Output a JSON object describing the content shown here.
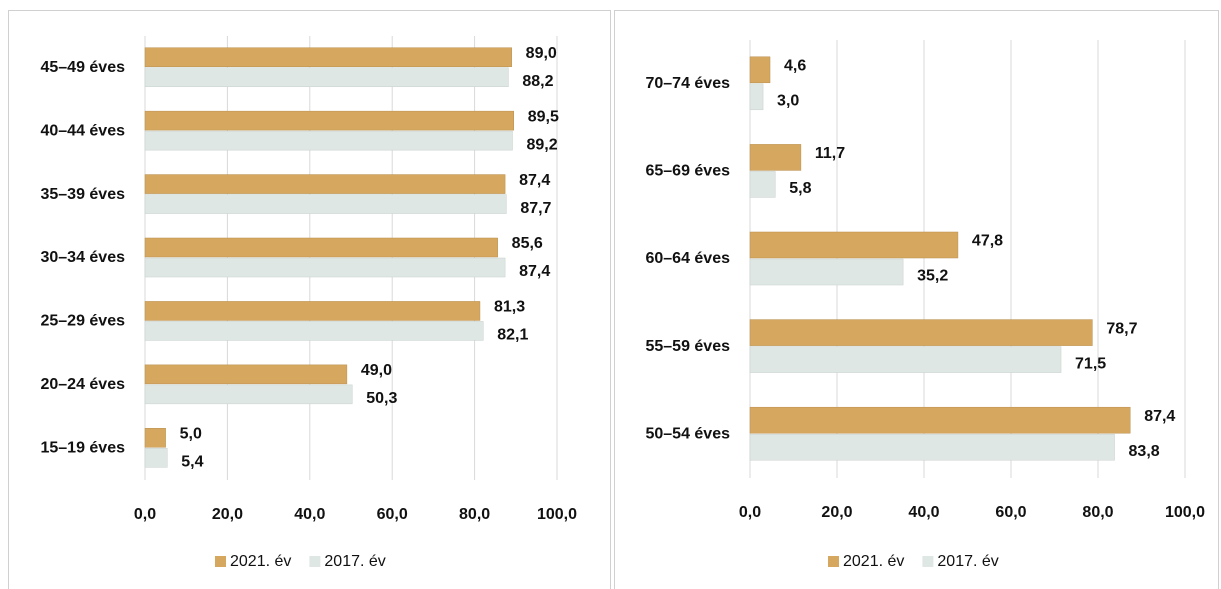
{
  "chart_data": [
    {
      "type": "bar",
      "categories": [
        "45–49 éves",
        "40–44 éves",
        "35–39 éves",
        "30–34 éves",
        "25–29 éves",
        "20–24 éves",
        "15–19 éves"
      ],
      "series": [
        {
          "name": "2021. év",
          "color": "#d6a85f",
          "values": [
            89.0,
            89.5,
            87.4,
            85.6,
            81.3,
            49.0,
            5.0
          ],
          "value_labels": [
            "89,0",
            "89,5",
            "87,4",
            "85,6",
            "81,3",
            "49,0",
            "5,0"
          ]
        },
        {
          "name": "2017. év",
          "color": "#dfe7e4",
          "values": [
            88.2,
            89.2,
            87.7,
            87.4,
            82.1,
            50.3,
            5.4
          ],
          "value_labels": [
            "88,2",
            "89,2",
            "87,7",
            "87,4",
            "82,1",
            "50,3",
            "5,4"
          ]
        }
      ],
      "xlim": [
        0,
        100
      ],
      "xticks": [
        {
          "value": 0,
          "label": "0,0"
        },
        {
          "value": 20,
          "label": "20,0"
        },
        {
          "value": 40,
          "label": "40,0"
        },
        {
          "value": 60,
          "label": "60,0"
        },
        {
          "value": 80,
          "label": "80,0"
        },
        {
          "value": 100,
          "label": "100,0"
        }
      ],
      "grid": true,
      "legend": "bottom"
    },
    {
      "type": "bar",
      "categories": [
        "70–74 éves",
        "65–69 éves",
        "60–64 éves",
        "55–59 éves",
        "50–54 éves"
      ],
      "series": [
        {
          "name": "2021. év",
          "color": "#d6a85f",
          "values": [
            4.6,
            11.7,
            47.8,
            78.7,
            87.4
          ],
          "value_labels": [
            "4,6",
            "11,7",
            "47,8",
            "78,7",
            "87,4"
          ]
        },
        {
          "name": "2017. év",
          "color": "#dfe7e4",
          "values": [
            3.0,
            5.8,
            35.2,
            71.5,
            83.8
          ],
          "value_labels": [
            "3,0",
            "5,8",
            "35,2",
            "71,5",
            "83,8"
          ]
        }
      ],
      "xlim": [
        0,
        100
      ],
      "xticks": [
        {
          "value": 0,
          "label": "0,0"
        },
        {
          "value": 20,
          "label": "20,0"
        },
        {
          "value": 40,
          "label": "40,0"
        },
        {
          "value": 60,
          "label": "60,0"
        },
        {
          "value": 80,
          "label": "80,0"
        },
        {
          "value": 100,
          "label": "100,0"
        }
      ],
      "grid": true,
      "legend": "bottom"
    }
  ]
}
